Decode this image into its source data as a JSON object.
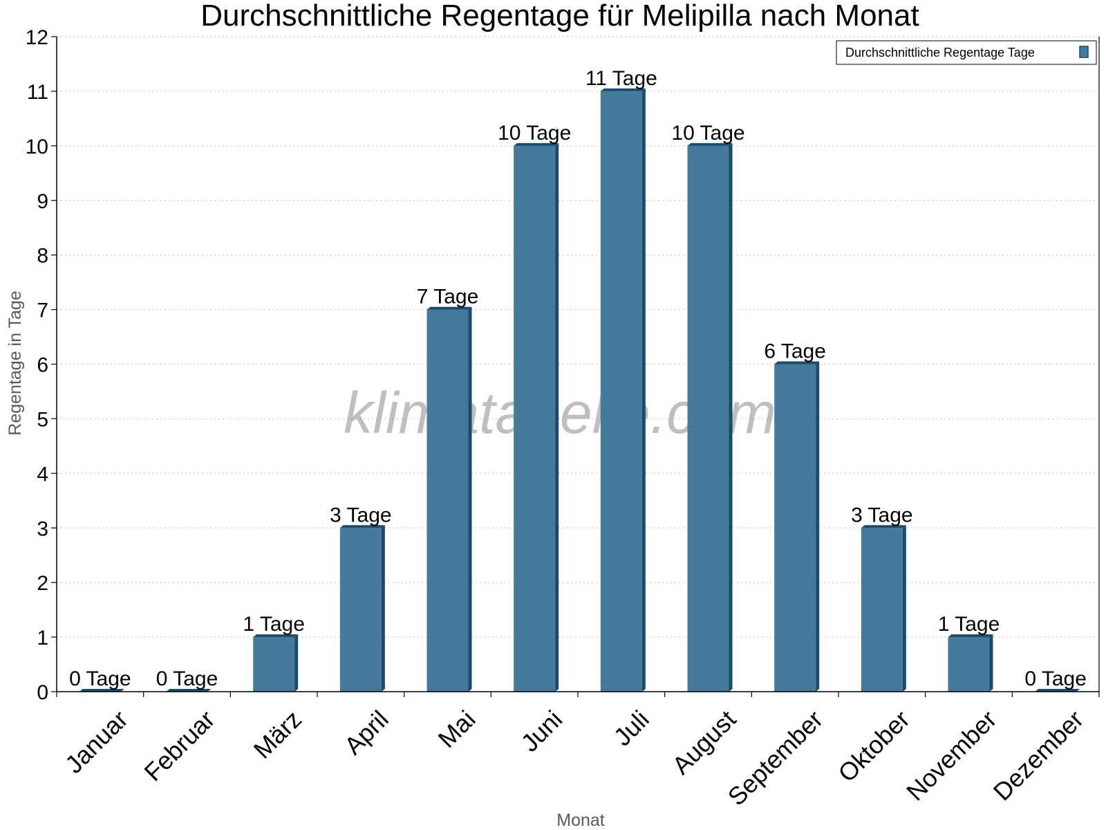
{
  "chart_data": {
    "type": "bar",
    "title": "Durchschnittliche Regentage für Melipilla nach Monat",
    "xlabel": "Monat",
    "ylabel": "Regentage in Tage",
    "ylim": [
      0,
      12
    ],
    "yticks": [
      "0",
      "1",
      "2",
      "3",
      "4",
      "5",
      "6",
      "7",
      "8",
      "9",
      "10",
      "11",
      "12"
    ],
    "grid": true,
    "legend_position": "top-right",
    "categories": [
      "Januar",
      "Februar",
      "März",
      "April",
      "Mai",
      "Juni",
      "Juli",
      "August",
      "September",
      "Oktober",
      "November",
      "Dezember"
    ],
    "series": [
      {
        "name": "Durchschnittliche Regentage Tage",
        "color": "#457a9c",
        "values": [
          0,
          0,
          1,
          3,
          7,
          10,
          11,
          10,
          6,
          3,
          1,
          0
        ],
        "labels": [
          "0 Tage",
          "0 Tage",
          "1 Tage",
          "3 Tage",
          "7 Tage",
          "10 Tage",
          "11 Tage",
          "10 Tage",
          "6 Tage",
          "3 Tage",
          "1 Tage",
          "0 Tage"
        ]
      }
    ]
  },
  "watermark": "klimatabelle.com",
  "colors": {
    "bar": "#457a9c",
    "bar_dark": "#1c4a6b",
    "grid": "#c8c8c8"
  }
}
